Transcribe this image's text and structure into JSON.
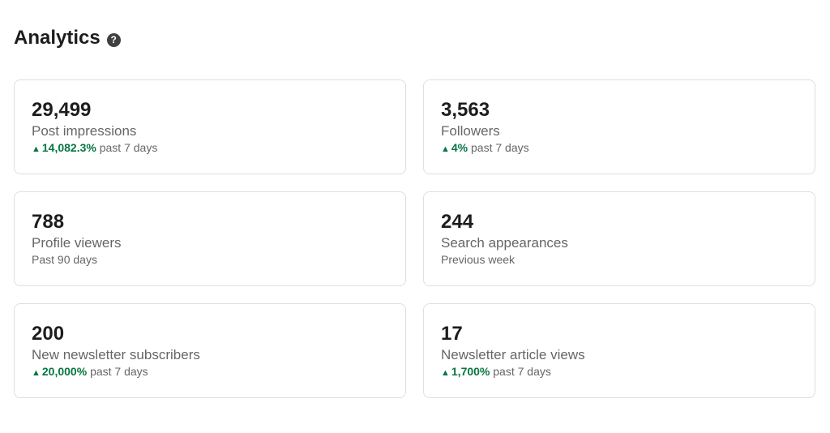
{
  "header": {
    "title": "Analytics",
    "help_icon": "question-circle-icon",
    "help_glyph": "?"
  },
  "colors": {
    "positive": "#057642",
    "secondary_text": "#666666"
  },
  "cards": [
    {
      "value": "29,499",
      "label": "Post impressions",
      "change": "14,082.3%",
      "period": "past 7 days"
    },
    {
      "value": "3,563",
      "label": "Followers",
      "change": "4%",
      "period": "past 7 days"
    },
    {
      "value": "788",
      "label": "Profile viewers",
      "change": null,
      "period": "Past 90 days"
    },
    {
      "value": "244",
      "label": "Search appearances",
      "change": null,
      "period": "Previous week"
    },
    {
      "value": "200",
      "label": "New newsletter subscribers",
      "change": "20,000%",
      "period": "past 7 days"
    },
    {
      "value": "17",
      "label": "Newsletter article views",
      "change": "1,700%",
      "period": "past 7 days"
    }
  ]
}
